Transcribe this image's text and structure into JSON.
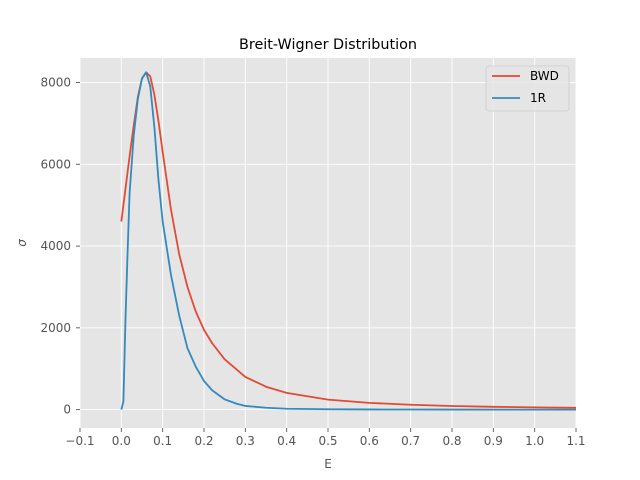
{
  "chart_data": {
    "type": "line",
    "title": "Breit-Wigner Distribution",
    "xlabel": "E",
    "ylabel": "σ",
    "xlim": [
      -0.1,
      1.1
    ],
    "ylim": [
      -450,
      8600
    ],
    "xticks": [
      -0.1,
      0.0,
      0.1,
      0.2,
      0.3,
      0.4,
      0.5,
      0.6,
      0.7,
      0.8,
      0.9,
      1.0,
      1.1
    ],
    "xtick_labels": [
      "−0.1",
      "0.0",
      "0.1",
      "0.2",
      "0.3",
      "0.4",
      "0.5",
      "0.6",
      "0.7",
      "0.8",
      "0.9",
      "1.0",
      "1.1"
    ],
    "yticks": [
      0,
      2000,
      4000,
      6000,
      8000
    ],
    "ytick_labels": [
      "0",
      "2000",
      "4000",
      "6000",
      "8000"
    ],
    "grid": true,
    "legend_position": "top-right",
    "series": [
      {
        "name": "BWD",
        "color": "#E24A33",
        "x": [
          0.0,
          0.01,
          0.02,
          0.03,
          0.04,
          0.05,
          0.06,
          0.07,
          0.08,
          0.09,
          0.1,
          0.12,
          0.14,
          0.16,
          0.18,
          0.2,
          0.22,
          0.25,
          0.3,
          0.35,
          0.4,
          0.5,
          0.6,
          0.7,
          0.8,
          0.9,
          1.0,
          1.1
        ],
        "y": [
          4600,
          5400,
          6200,
          6950,
          7650,
          8100,
          8250,
          8150,
          7700,
          7050,
          6300,
          4900,
          3800,
          3000,
          2400,
          1950,
          1620,
          1230,
          800,
          560,
          410,
          245,
          165,
          118,
          88,
          68,
          54,
          44
        ]
      },
      {
        "name": "1R",
        "color": "#348ABD",
        "x": [
          0.0,
          0.005,
          0.01,
          0.015,
          0.02,
          0.03,
          0.04,
          0.05,
          0.06,
          0.07,
          0.08,
          0.09,
          0.1,
          0.12,
          0.14,
          0.16,
          0.18,
          0.2,
          0.22,
          0.25,
          0.28,
          0.3,
          0.35,
          0.4,
          0.5,
          0.6,
          0.7,
          0.8,
          0.9,
          1.0,
          1.1
        ],
        "y": [
          0,
          200,
          2200,
          3800,
          5300,
          6700,
          7600,
          8100,
          8250,
          7900,
          6900,
          5600,
          4600,
          3300,
          2300,
          1500,
          1050,
          700,
          470,
          250,
          140,
          90,
          45,
          20,
          8,
          4,
          2,
          1,
          0,
          0,
          0
        ]
      }
    ]
  }
}
